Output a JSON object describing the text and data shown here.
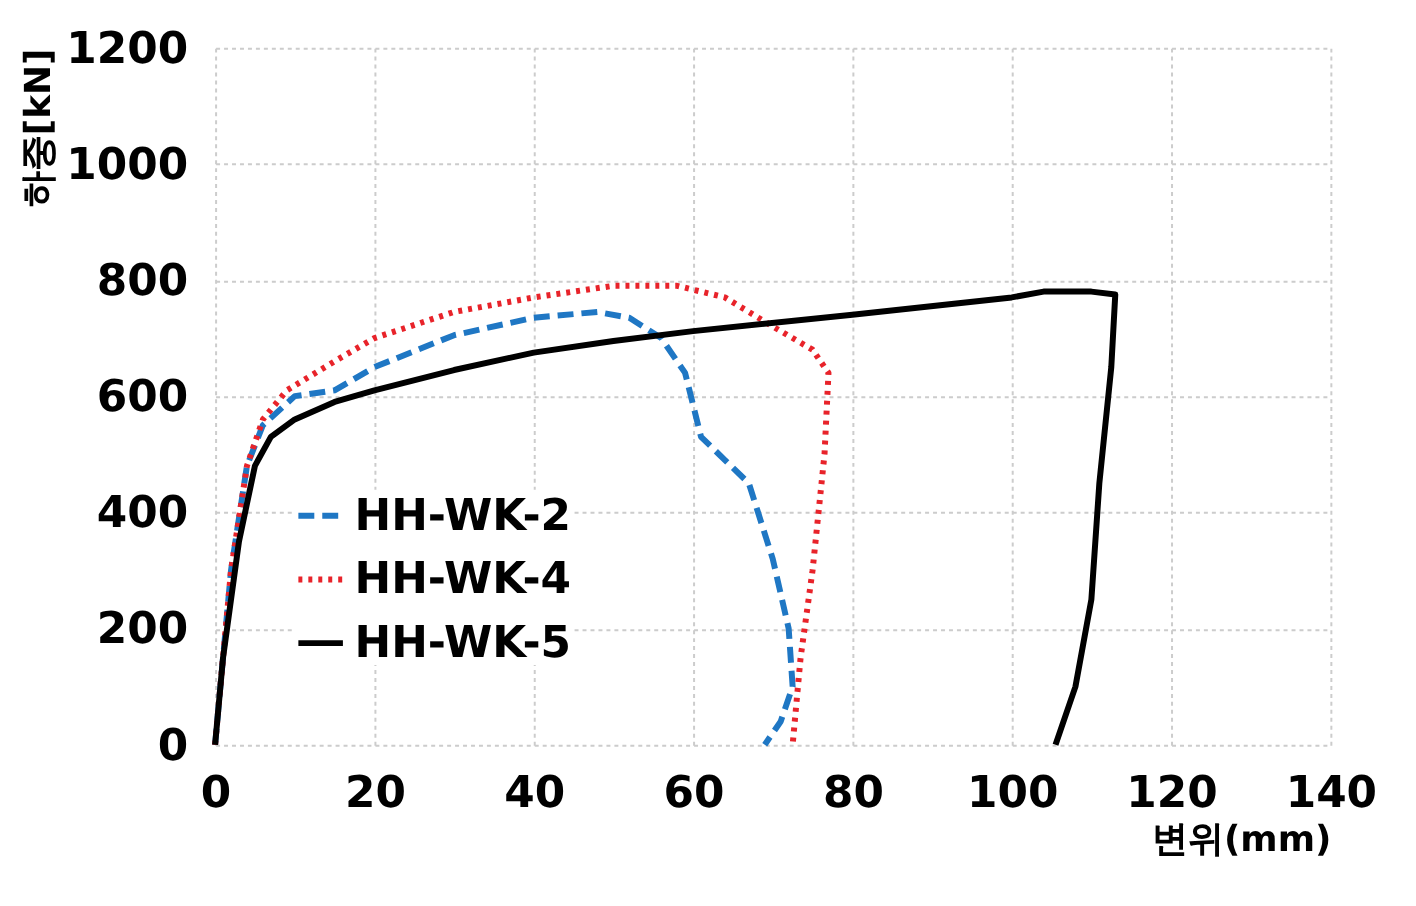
{
  "chart_data": {
    "type": "line",
    "xlabel": "변위(mm)",
    "ylabel": "하중[kN]",
    "xlim": [
      0,
      140
    ],
    "xticks": [
      0,
      20,
      40,
      60,
      80,
      100,
      120,
      140
    ],
    "ylim": [
      0,
      1200
    ],
    "yticks": [
      0,
      200,
      400,
      600,
      800,
      1000,
      1200
    ],
    "grid": true,
    "legend": "bottom left",
    "marker": "none",
    "series": [
      {
        "name": "HH-WK-2",
        "color": "#1f77c4",
        "line_style": "dashed",
        "x": [
          0,
          2,
          4,
          6,
          10,
          15,
          20,
          30,
          40,
          48,
          52,
          56,
          59,
          61,
          64,
          67,
          70,
          72,
          72.5,
          71,
          69
        ],
        "values": [
          0,
          300,
          480,
          550,
          600,
          610,
          650,
          705,
          735,
          745,
          735,
          700,
          640,
          530,
          490,
          450,
          320,
          200,
          100,
          40,
          0
        ]
      },
      {
        "name": "HH-WK-4",
        "color": "#e8232a",
        "line_style": "dotted",
        "x": [
          0,
          2,
          4,
          6,
          9,
          15,
          20,
          30,
          40,
          50,
          58,
          64,
          70,
          75,
          77,
          76.5,
          75,
          73.5,
          72.5
        ],
        "values": [
          0,
          300,
          480,
          560,
          610,
          660,
          700,
          745,
          770,
          790,
          790,
          770,
          720,
          680,
          640,
          500,
          300,
          150,
          0
        ]
      },
      {
        "name": "HH-WK-5",
        "color": "#000000",
        "line_style": "solid",
        "x": [
          0,
          1,
          3,
          5,
          7,
          10,
          15,
          20,
          30,
          40,
          50,
          60,
          80,
          100,
          104,
          110,
          113,
          112.5,
          111,
          110,
          108,
          105.5
        ],
        "values": [
          0,
          150,
          350,
          480,
          530,
          560,
          590,
          610,
          645,
          675,
          695,
          712,
          740,
          770,
          780,
          780,
          775,
          650,
          450,
          250,
          100,
          0
        ]
      }
    ]
  }
}
